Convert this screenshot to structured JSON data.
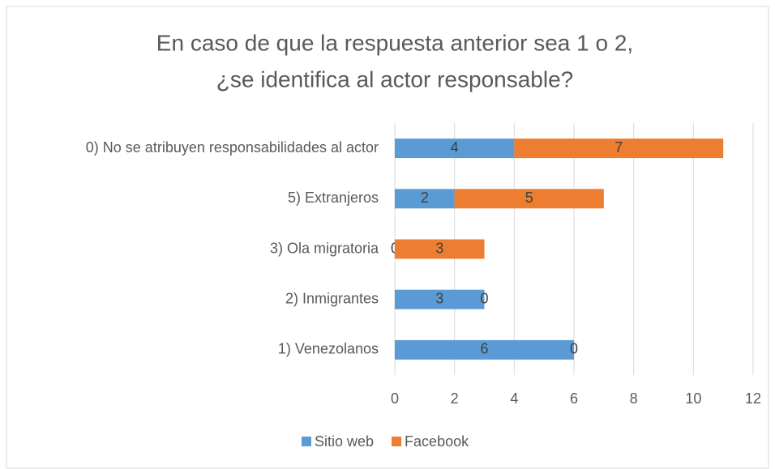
{
  "chart_data": {
    "type": "stacked-barh",
    "title": [
      "En caso de que la respuesta anterior sea 1 o 2,",
      "¿se identifica al actor responsable?"
    ],
    "categories": [
      "0) No se atribuyen responsabilidades al actor",
      "5) Extranjeros",
      "3) Ola migratoria",
      "2) Inmigrantes",
      "1) Venezolanos"
    ],
    "series": [
      {
        "name": "Sitio web",
        "color": "#5b9bd5",
        "values": [
          4,
          2,
          0,
          3,
          6
        ]
      },
      {
        "name": "Facebook",
        "color": "#ed7d31",
        "values": [
          7,
          5,
          3,
          0,
          0
        ]
      }
    ],
    "xlim": [
      0,
      12
    ],
    "xticks": [
      0,
      2,
      4,
      6,
      8,
      10,
      12
    ],
    "grid": true,
    "legend": "bottom"
  }
}
